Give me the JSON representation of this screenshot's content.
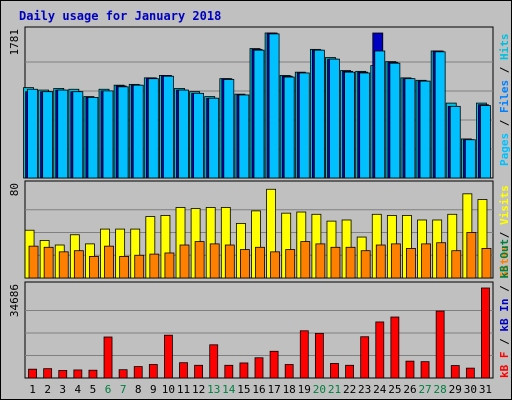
{
  "chart_data": {
    "title": "Daily usage for January 2018",
    "type": "bar",
    "x_labels": [
      "1",
      "2",
      "3",
      "4",
      "5",
      "6",
      "7",
      "8",
      "9",
      "10",
      "11",
      "12",
      "13",
      "14",
      "15",
      "16",
      "17",
      "18",
      "19",
      "20",
      "21",
      "22",
      "23",
      "24",
      "25",
      "26",
      "27",
      "28",
      "29",
      "30",
      "31"
    ],
    "weekend_days": [
      "6",
      "7",
      "13",
      "14",
      "20",
      "21",
      "27",
      "28"
    ],
    "colors": {
      "background": "#c0c0c0",
      "plot_bg": "#c0c0c0",
      "hits": "#00c0e0",
      "files": "#0080ff",
      "pages": "#00c0ff",
      "visits": "#ffff00",
      "sites": "#ff8000",
      "kbin": "#0000c0",
      "kbout": "#008040",
      "kbf": "#ff0000",
      "title": "#0000c0",
      "weekend": "#008040"
    },
    "panels": [
      {
        "id": "hits",
        "ymax_label": "1781",
        "ymax": 1781,
        "series": [
          {
            "name": "Hits",
            "color": "#00c0e0",
            "values": [
              1110,
              1080,
              1100,
              1090,
              1000,
              1090,
              1140,
              1150,
              1230,
              1260,
              1100,
              1060,
              1000,
              1220,
              1030,
              1590,
              1781,
              1260,
              1300,
              1580,
              1480,
              1320,
              1310,
              1380,
              1430,
              1230,
              1200,
              1560,
              920,
              480,
              920
            ]
          },
          {
            "name": "Files",
            "color": "#0000c0",
            "values": [
              1060,
              1060,
              1080,
              1060,
              990,
              1070,
              1130,
              1140,
              1230,
              1260,
              1080,
              1040,
              980,
              1220,
              1020,
              1580,
              1781,
              1250,
              1290,
              1570,
              1460,
              1310,
              1300,
              1781,
              1420,
              1220,
              1190,
              1560,
              880,
              470,
              900
            ]
          },
          {
            "name": "Pages",
            "color": "#00c0ff",
            "values": [
              1090,
              1060,
              1080,
              1060,
              990,
              1070,
              1120,
              1140,
              1220,
              1250,
              1080,
              1040,
              980,
              1210,
              1020,
              1570,
              1770,
              1240,
              1290,
              1570,
              1460,
              1300,
              1290,
              1560,
              1410,
              1220,
              1190,
              1550,
              880,
              470,
              890
            ]
          }
        ]
      },
      {
        "id": "visits",
        "ymax_label": "80",
        "ymax": 80,
        "series": [
          {
            "name": "Visits",
            "color": "#ffff00",
            "values": [
              42,
              33,
              29,
              38,
              30,
              43,
              43,
              43,
              54,
              55,
              62,
              61,
              62,
              62,
              48,
              59,
              78,
              57,
              58,
              56,
              50,
              51,
              36,
              56,
              55,
              55,
              51,
              51,
              56,
              74,
              69
            ]
          },
          {
            "name": "Sites",
            "color": "#ff8000",
            "values": [
              28,
              27,
              23,
              24,
              19,
              28,
              19,
              20,
              21,
              22,
              29,
              32,
              30,
              29,
              25,
              27,
              23,
              25,
              32,
              30,
              27,
              27,
              24,
              29,
              30,
              26,
              30,
              31,
              24,
              40,
              26
            ]
          }
        ]
      },
      {
        "id": "kbytes",
        "ymax_label": "34686",
        "ymax": 34686,
        "series": [
          {
            "name": "KB F",
            "color": "#ff0000",
            "values": [
              3400,
              3600,
              2900,
              3100,
              3000,
              15800,
              3200,
              4400,
              5200,
              16500,
              5900,
              4900,
              12800,
              4900,
              5800,
              7800,
              10300,
              5200,
              18200,
              17200,
              5600,
              4900,
              15900,
              21600,
              23500,
              6500,
              6300,
              25800,
              4800,
              3800,
              34686
            ]
          }
        ]
      }
    ],
    "legend": {
      "hits_panel": [
        {
          "label": "Pages",
          "color": "#00c0ff"
        },
        {
          "label": "Files",
          "color": "#0080ff"
        },
        {
          "label": "Hits",
          "color": "#00c0e0"
        }
      ],
      "visits_panel": [
        {
          "label": "Sites",
          "color": "#ff8000"
        },
        {
          "label": "Visits",
          "color": "#ffff00"
        }
      ],
      "kbytes_panel": [
        {
          "label": "kB F",
          "color": "#ff0000"
        },
        {
          "label": "kB In",
          "color": "#0000c0"
        },
        {
          "label": "kB Out",
          "color": "#008040"
        }
      ]
    },
    "legend_separator": "/"
  }
}
